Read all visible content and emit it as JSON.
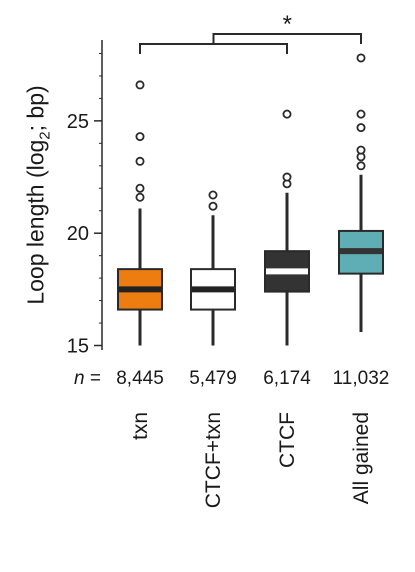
{
  "chart_data": {
    "type": "box",
    "ylabel_prefix": "Loop length (log",
    "ylabel_sub": "2",
    "ylabel_suffix": "; bp)",
    "ylim": [
      14.8,
      28.6
    ],
    "yticks": [
      15,
      20,
      25
    ],
    "n_prefix": "n =",
    "categories": [
      "txn",
      "CTCF+txn",
      "CTCF",
      "All gained"
    ],
    "n_labels": [
      "8,445",
      "5,479",
      "6,174",
      "11,032"
    ],
    "colors": [
      "#ee7d11",
      "#ffffff",
      "#333333",
      "#5fadb5"
    ],
    "median_colors": [
      "#222222",
      "#222222",
      "#ffffff",
      "#333333"
    ],
    "boxes": [
      {
        "whisker_low": 15.0,
        "q1": 16.6,
        "median": 17.5,
        "q3": 18.4,
        "whisker_high": 21.1,
        "outliers": [
          21.6,
          22.0,
          23.2,
          24.3,
          26.6
        ]
      },
      {
        "whisker_low": 15.0,
        "q1": 16.6,
        "median": 17.5,
        "q3": 18.4,
        "whisker_high": 20.8,
        "outliers": [
          21.2,
          21.7
        ]
      },
      {
        "whisker_low": 15.0,
        "q1": 17.4,
        "median": 18.3,
        "q3": 19.2,
        "whisker_high": 21.8,
        "outliers": [
          22.2,
          22.5,
          25.3
        ]
      },
      {
        "whisker_low": 15.6,
        "q1": 18.2,
        "median": 19.2,
        "q3": 20.1,
        "whisker_high": 22.6,
        "outliers": [
          23.0,
          23.4,
          23.7,
          24.7,
          25.3,
          27.8
        ]
      }
    ],
    "significance": {
      "label": "*",
      "left_group": [
        0,
        2
      ],
      "right_group": 3
    }
  }
}
